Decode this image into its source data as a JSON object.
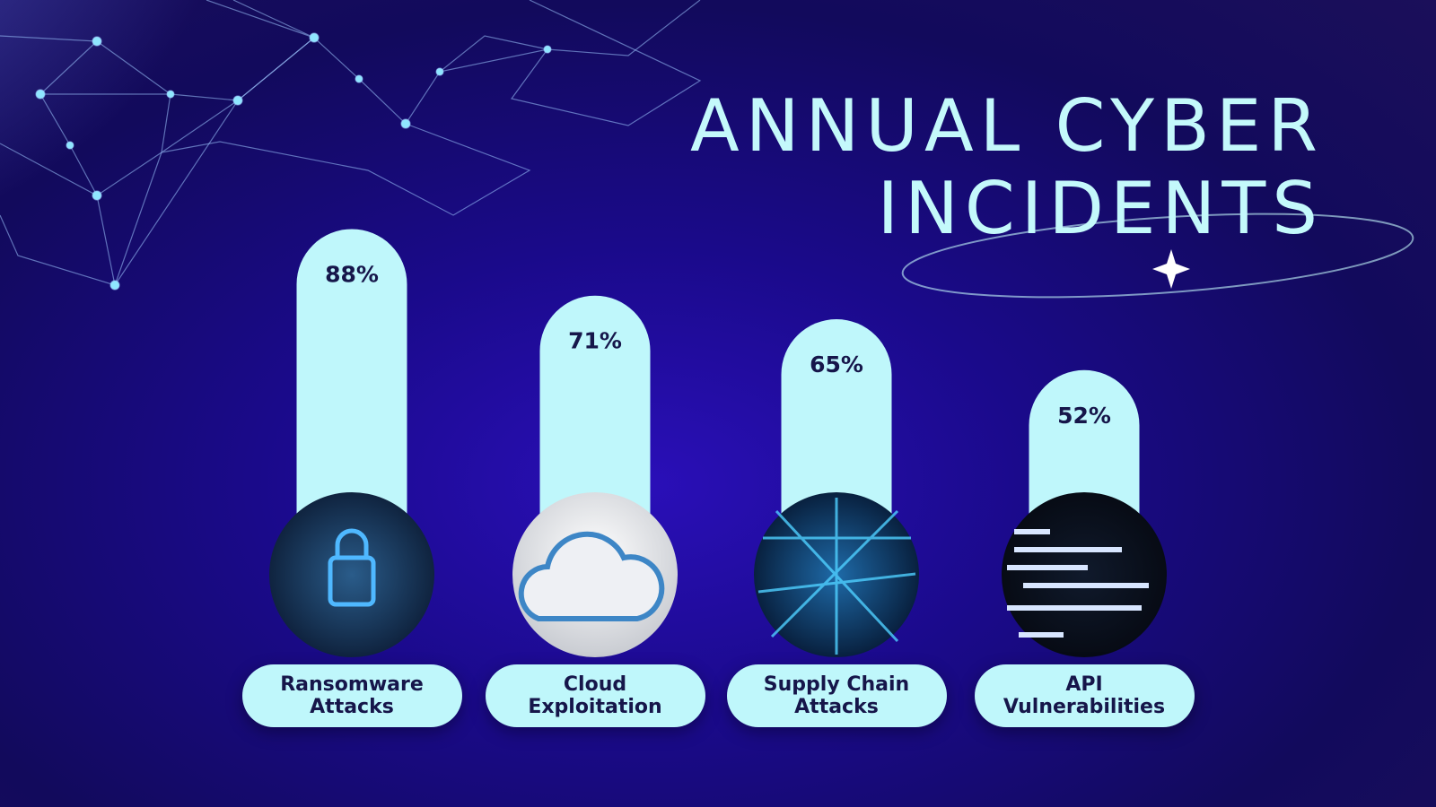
{
  "chart_data": {
    "type": "bar",
    "title": "ANNUAL CYBER INCIDENTS",
    "categories": [
      "Ransomware Attacks",
      "Cloud Exploitation",
      "Supply Chain Attacks",
      "API Vulnerabilities"
    ],
    "values": [
      88,
      71,
      65,
      52
    ],
    "value_labels": [
      "88%",
      "71%",
      "65%",
      "52%"
    ],
    "color": "#bff7fb"
  }
}
